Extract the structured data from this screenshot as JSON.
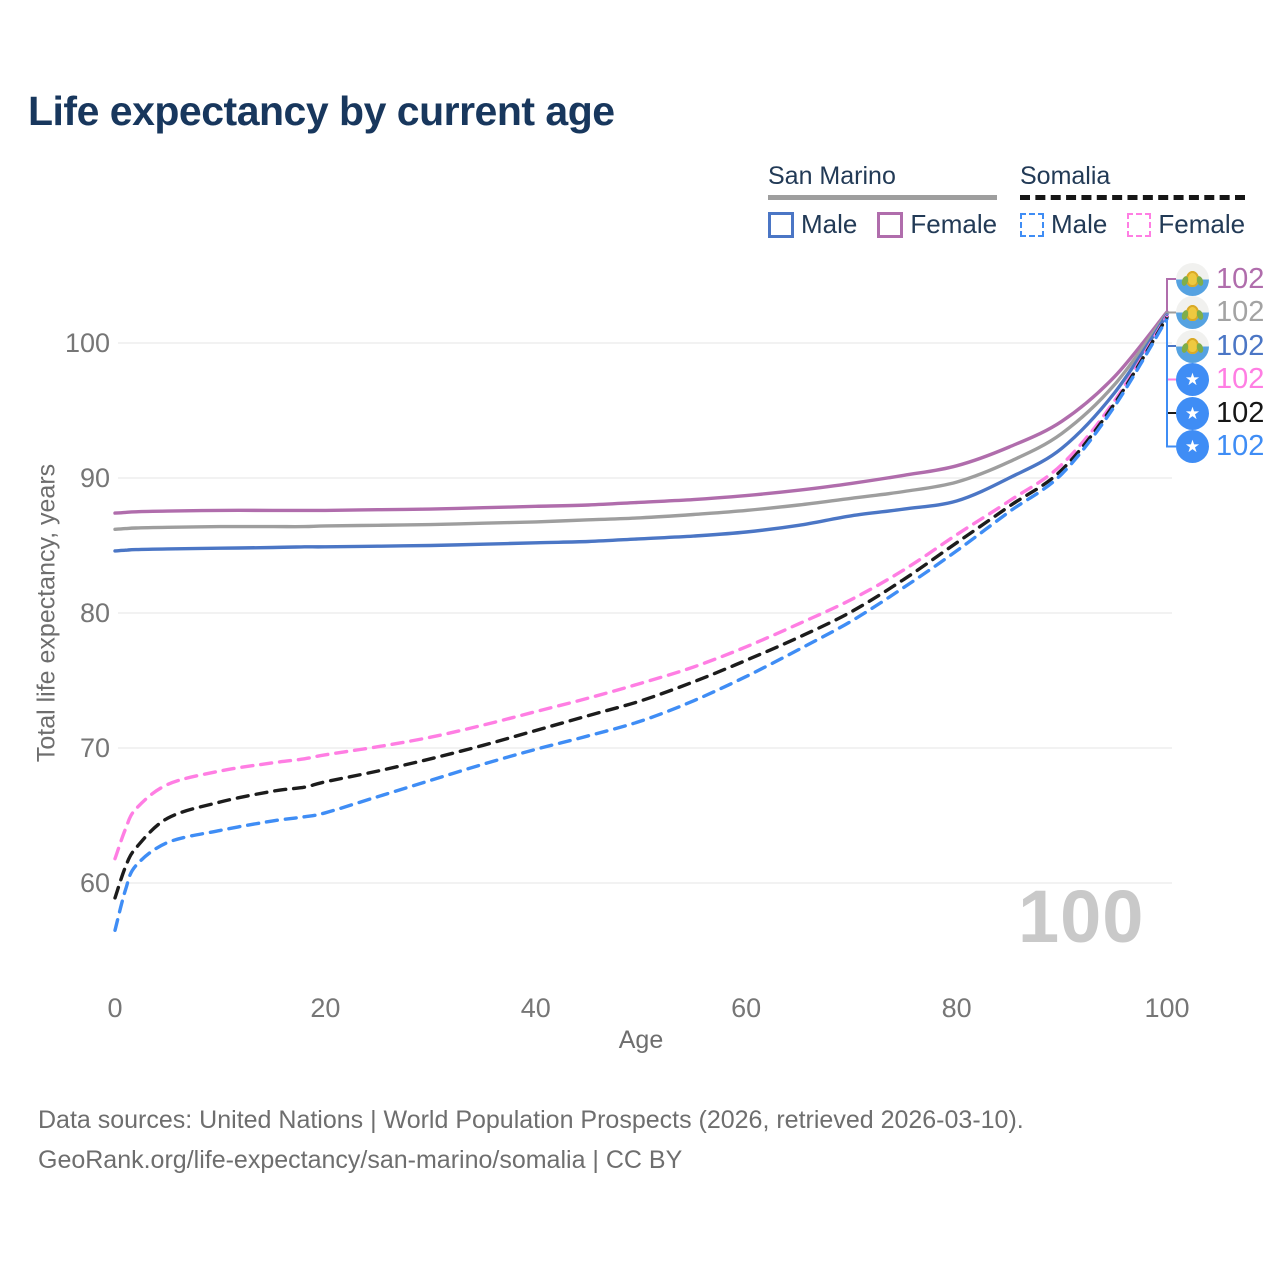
{
  "title": "Life expectancy by current age",
  "legend": {
    "groups": [
      {
        "name": "San Marino",
        "style": "solid",
        "items": [
          {
            "label": "Male",
            "color": "#4b76c5"
          },
          {
            "label": "Female",
            "color": "#b06dac"
          }
        ]
      },
      {
        "name": "Somalia",
        "style": "dashed",
        "items": [
          {
            "label": "Male",
            "color": "#3f8df5"
          },
          {
            "label": "Female",
            "color": "#ff7ee3"
          }
        ]
      }
    ]
  },
  "watermark": "100",
  "footer": {
    "line1": "Data sources: United Nations | World Population Prospects (2026, retrieved 2026-03-10).",
    "line2": "GeoRank.org/life-expectancy/san-marino/somalia | CC BY"
  },
  "end_labels": [
    {
      "value": "102",
      "flag": "san-marino",
      "color": "#b06dac"
    },
    {
      "value": "102",
      "flag": "san-marino",
      "color": "#a3a3a3"
    },
    {
      "value": "102",
      "flag": "san-marino",
      "color": "#4b76c5"
    },
    {
      "value": "102",
      "flag": "somalia",
      "color": "#ff7ee3"
    },
    {
      "value": "102",
      "flag": "somalia",
      "color": "#161616"
    },
    {
      "value": "102",
      "flag": "somalia",
      "color": "#3f8df5"
    }
  ],
  "chart_data": {
    "type": "line",
    "title": "Life expectancy by current age",
    "xlabel": "Age",
    "ylabel": "Total life expectancy, years",
    "xlim": [
      0,
      100
    ],
    "ylim": [
      56,
      104
    ],
    "x_ticks": [
      0,
      20,
      40,
      60,
      80,
      100
    ],
    "y_ticks": [
      60,
      70,
      80,
      90,
      100
    ],
    "grid": "horizontal",
    "legend_position": "top-right",
    "x": [
      0,
      1,
      2,
      5,
      10,
      15,
      18,
      20,
      25,
      30,
      35,
      40,
      45,
      50,
      55,
      60,
      65,
      70,
      75,
      80,
      85,
      90,
      95,
      100
    ],
    "series": [
      {
        "name": "San Marino Female",
        "country": "San Marino",
        "sex": "Female",
        "color": "#b06dac",
        "dash": false,
        "end_value": 102,
        "values": [
          87.4,
          87.45,
          87.5,
          87.55,
          87.6,
          87.6,
          87.6,
          87.6,
          87.65,
          87.7,
          87.8,
          87.9,
          88.0,
          88.2,
          88.4,
          88.7,
          89.1,
          89.6,
          90.2,
          90.9,
          92.3,
          94.2,
          97.5,
          102.3
        ]
      },
      {
        "name": "San Marino Both sexes",
        "country": "San Marino",
        "sex": "Both",
        "color": "#9e9e9e",
        "dash": false,
        "end_value": 102,
        "values": [
          86.2,
          86.25,
          86.3,
          86.35,
          86.4,
          86.4,
          86.4,
          86.45,
          86.5,
          86.55,
          86.65,
          86.75,
          86.9,
          87.05,
          87.3,
          87.6,
          88.0,
          88.5,
          89.0,
          89.7,
          91.2,
          93.3,
          96.9,
          102.2
        ]
      },
      {
        "name": "San Marino Male",
        "country": "San Marino",
        "sex": "Male",
        "color": "#4b76c5",
        "dash": false,
        "end_value": 102,
        "values": [
          84.6,
          84.65,
          84.7,
          84.75,
          84.8,
          84.85,
          84.9,
          84.9,
          84.95,
          85.0,
          85.1,
          85.2,
          85.3,
          85.5,
          85.7,
          86.0,
          86.5,
          87.2,
          87.7,
          88.3,
          90.0,
          92.2,
          96.3,
          102.1
        ]
      },
      {
        "name": "Somalia Female",
        "country": "Somalia",
        "sex": "Female",
        "color": "#ff7ee3",
        "dash": true,
        "end_value": 102,
        "values": [
          61.8,
          64.0,
          65.5,
          67.3,
          68.3,
          68.9,
          69.2,
          69.5,
          70.1,
          70.8,
          71.7,
          72.7,
          73.7,
          74.8,
          76.0,
          77.5,
          79.2,
          81.0,
          83.2,
          85.8,
          88.3,
          91.0,
          95.7,
          102.0
        ]
      },
      {
        "name": "Somalia Both sexes",
        "country": "Somalia",
        "sex": "Both",
        "color": "#1c1c1c",
        "dash": true,
        "end_value": 102,
        "values": [
          58.9,
          61.2,
          62.6,
          64.8,
          66.0,
          66.8,
          67.1,
          67.5,
          68.3,
          69.2,
          70.2,
          71.3,
          72.4,
          73.5,
          74.9,
          76.5,
          78.2,
          80.1,
          82.5,
          85.2,
          87.9,
          90.6,
          95.5,
          101.9
        ]
      },
      {
        "name": "Somalia Male",
        "country": "Somalia",
        "sex": "Male",
        "color": "#3f8df5",
        "dash": true,
        "end_value": 102,
        "values": [
          56.5,
          59.5,
          61.3,
          63.0,
          63.9,
          64.6,
          64.9,
          65.2,
          66.4,
          67.6,
          68.8,
          69.9,
          70.9,
          72.0,
          73.5,
          75.3,
          77.3,
          79.4,
          81.9,
          84.6,
          87.5,
          90.3,
          95.3,
          101.8
        ]
      }
    ]
  }
}
